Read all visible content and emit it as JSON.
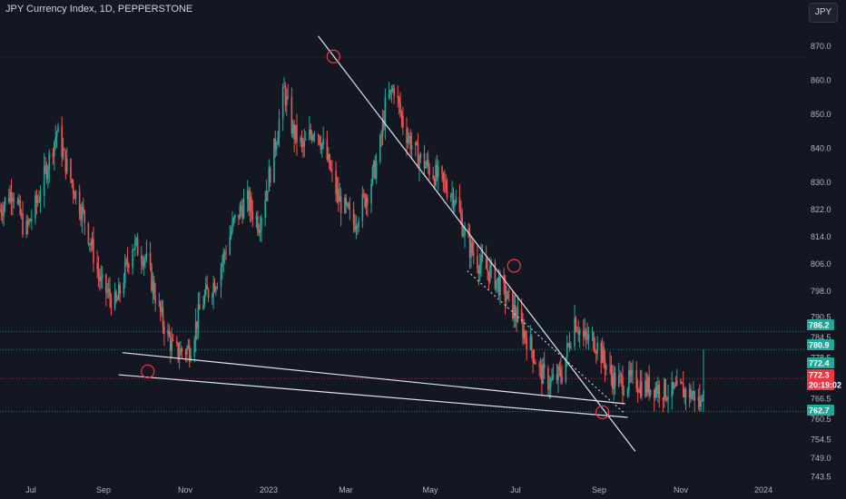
{
  "header": {
    "title": "JPY Currency Index, 1D, PEPPERSTONE",
    "currency_button": "JPY"
  },
  "colors": {
    "background": "#131722",
    "up": "#26a69a",
    "down": "#ef5350",
    "grid": "#2a2e39",
    "drawing": "#e0e3eb",
    "circle": "#f23645"
  },
  "chart_data": {
    "type": "candlestick",
    "x_ticks": [
      "Jul",
      "Sep",
      "Nov",
      "2023",
      "Mar",
      "May",
      "Jul",
      "Sep",
      "Nov",
      "2024"
    ],
    "y_ticks": [
      870.0,
      860.0,
      850.0,
      840.0,
      830.0,
      822.0,
      814.0,
      806.0,
      798.0,
      790.5,
      784.5,
      778.5,
      766.5,
      760.5,
      754.5,
      749.0,
      743.5
    ],
    "price_tags": [
      {
        "text": "786.2",
        "value": 786.2,
        "color": "#26a69a"
      },
      {
        "text": "780.9",
        "value": 780.9,
        "color": "#26a69a"
      },
      {
        "text": "772.4",
        "value": 772.4,
        "color": "#26a69a"
      },
      {
        "text": "772.3",
        "value": 772.3,
        "color": "#f23645"
      },
      {
        "text": "20:19:02",
        "value": 772.3,
        "color": "#f23645"
      },
      {
        "text": "762.7",
        "value": 762.7,
        "color": "#26a69a"
      }
    ],
    "horizontal_levels": [
      866.8,
      786.2,
      780.9,
      772.4,
      762.7
    ],
    "trendlines": [
      {
        "name": "descending-resistance",
        "from": [
          "2023-02-27",
          873.0
        ],
        "to": [
          "2023-11-05",
          751.0
        ]
      },
      {
        "name": "parallel-dotted-line",
        "from": [
          "2023-06-25",
          804.0
        ],
        "to": [
          "2023-10-28",
          762.0
        ]
      },
      {
        "name": "support-upper",
        "from": [
          "2022-09-25",
          780.0
        ],
        "to": [
          "2023-10-28",
          765.0
        ]
      },
      {
        "name": "support-lower",
        "from": [
          "2022-09-22",
          773.5
        ],
        "to": [
          "2023-10-30",
          761.0
        ]
      }
    ],
    "marked_points": [
      {
        "date": "2022-10-15",
        "value": 774.5
      },
      {
        "date": "2023-03-11",
        "value": 867.0
      },
      {
        "date": "2023-08-01",
        "value": 805.5
      },
      {
        "date": "2023-10-10",
        "value": 762.5
      }
    ],
    "trend_path": [
      [
        0,
        822.0
      ],
      [
        10,
        828.0
      ],
      [
        20,
        815.0
      ],
      [
        30,
        825.0
      ],
      [
        45,
        845.0
      ],
      [
        55,
        832.0
      ],
      [
        68,
        818.0
      ],
      [
        80,
        800.0
      ],
      [
        92,
        794.0
      ],
      [
        105,
        812.0
      ],
      [
        115,
        808.0
      ],
      [
        128,
        790.0
      ],
      [
        138,
        780.0
      ],
      [
        150,
        781.0
      ],
      [
        160,
        795.0
      ],
      [
        172,
        802.0
      ],
      [
        185,
        818.0
      ],
      [
        195,
        825.0
      ],
      [
        205,
        818.0
      ],
      [
        215,
        835.0
      ],
      [
        225,
        857.0
      ],
      [
        232,
        845.0
      ],
      [
        240,
        840.0
      ],
      [
        250,
        847.0
      ],
      [
        258,
        838.0
      ],
      [
        268,
        825.0
      ],
      [
        280,
        818.0
      ],
      [
        292,
        828.0
      ],
      [
        300,
        838.0
      ],
      [
        305,
        852.0
      ],
      [
        312,
        858.0
      ],
      [
        320,
        846.0
      ],
      [
        330,
        838.0
      ],
      [
        340,
        834.0
      ],
      [
        350,
        830.0
      ],
      [
        360,
        826.0
      ],
      [
        370,
        812.0
      ],
      [
        380,
        806.0
      ],
      [
        390,
        803.0
      ],
      [
        400,
        797.0
      ],
      [
        410,
        790.0
      ],
      [
        420,
        782.0
      ],
      [
        428,
        774.0
      ],
      [
        436,
        771.0
      ],
      [
        445,
        774.0
      ],
      [
        455,
        790.0
      ],
      [
        462,
        784.0
      ],
      [
        470,
        784.0
      ],
      [
        478,
        778.0
      ],
      [
        486,
        772.0
      ],
      [
        494,
        771.0
      ],
      [
        502,
        772.0
      ],
      [
        510,
        770.0
      ],
      [
        518,
        770.0
      ],
      [
        525,
        769.0
      ],
      [
        532,
        768.0
      ],
      [
        540,
        769.0
      ],
      [
        545,
        768.0
      ],
      [
        550,
        767.5
      ],
      [
        555,
        764.5
      ],
      [
        557,
        772.3
      ]
    ],
    "start_date": "2022-06-20",
    "ylim": [
      742.0,
      876.0
    ],
    "grid": false,
    "xlabel": "",
    "ylabel": "",
    "title": ""
  }
}
